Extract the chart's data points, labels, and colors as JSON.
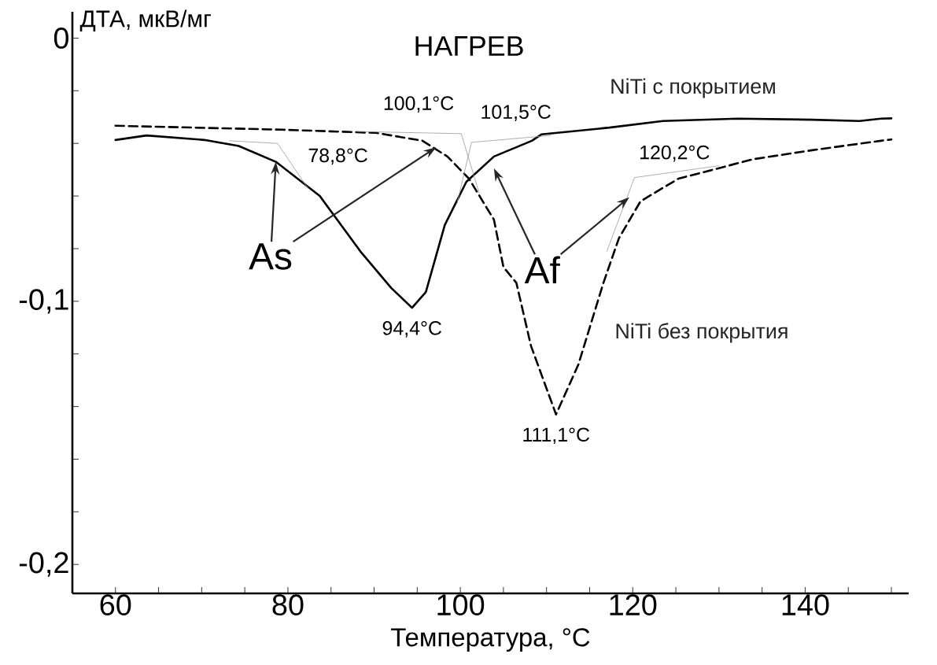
{
  "chart_data": {
    "type": "line",
    "title": "НАГРЕВ",
    "xlabel": "Температура, °C",
    "ylabel": "ДТА, мкВ/мг",
    "xlim": [
      55,
      152
    ],
    "ylim": [
      -0.211,
      0.01
    ],
    "xticks": [
      60,
      {
        "value": 65,
        "label": null
      },
      {
        "value": 70,
        "label": null
      },
      {
        "value": 75,
        "label": null
      },
      80,
      {
        "value": 85,
        "label": null
      },
      {
        "value": 90,
        "label": null
      },
      {
        "value": 95,
        "label": null
      },
      100,
      {
        "value": 105,
        "label": null
      },
      {
        "value": 110,
        "label": null
      },
      {
        "value": 115,
        "label": null
      },
      120,
      {
        "value": 125,
        "label": null
      },
      {
        "value": 130,
        "label": null
      },
      {
        "value": 135,
        "label": null
      },
      140,
      {
        "value": 145,
        "label": null
      },
      {
        "value": 150,
        "label": null
      }
    ],
    "yticks": [
      0,
      {
        "value": -0.02,
        "label": null
      },
      {
        "value": -0.04,
        "label": null
      },
      {
        "value": -0.06,
        "label": null
      },
      {
        "value": -0.08,
        "label": null
      },
      {
        "value": -0.1,
        "label": "-0,1"
      },
      {
        "value": -0.12,
        "label": null
      },
      {
        "value": -0.14,
        "label": null
      },
      {
        "value": -0.16,
        "label": null
      },
      {
        "value": -0.18,
        "label": null
      },
      {
        "value": -0.2,
        "label": "-0,2"
      }
    ],
    "series": [
      {
        "name": "NiTi с покрытием",
        "color": "#000000",
        "line_style": "solid",
        "x": [
          60,
          63.6,
          70.3,
          74.3,
          78.6,
          83.7,
          88.4,
          92.0,
          94.4,
          96.0,
          98.2,
          100.7,
          103.9,
          108.3,
          109.4,
          117.3,
          123.5,
          132.2,
          140.8,
          146.3,
          148.8,
          150
        ],
        "values": [
          -0.0387,
          -0.037,
          -0.0387,
          -0.041,
          -0.047,
          -0.06,
          -0.081,
          -0.095,
          -0.1025,
          -0.0965,
          -0.071,
          -0.0546,
          -0.045,
          -0.039,
          -0.0366,
          -0.034,
          -0.0315,
          -0.0306,
          -0.031,
          -0.0315,
          -0.0306,
          -0.0305
        ]
      },
      {
        "name": "NiTi без покрытия",
        "color": "#000000",
        "line_style": "dashed",
        "x": [
          60,
          79.3,
          90.2,
          95.6,
          98.5,
          101.0,
          103.9,
          105.0,
          106.5,
          108.2,
          111.1,
          113.7,
          116.6,
          118.4,
          120.9,
          125.3,
          134.0,
          140.8,
          148.8,
          150
        ],
        "values": [
          -0.0333,
          -0.0348,
          -0.036,
          -0.039,
          -0.045,
          -0.0534,
          -0.069,
          -0.087,
          -0.093,
          -0.117,
          -0.143,
          -0.124,
          -0.093,
          -0.076,
          -0.062,
          -0.0534,
          -0.046,
          -0.0426,
          -0.039,
          -0.0385
        ]
      },
      {
        "color": "#999999",
        "line_style": "solid",
        "x": [
          73.2,
          78.8,
          82.3
        ],
        "values": [
          -0.039,
          -0.04,
          -0.057
        ]
      },
      {
        "color": "#999999",
        "line_style": "solid",
        "x": [
          88.0,
          100.1,
          102.2
        ],
        "values": [
          -0.0355,
          -0.0363,
          -0.059
        ]
      },
      {
        "color": "#999999",
        "line_style": "solid",
        "x": [
          99.6,
          101.3,
          110.5
        ],
        "values": [
          -0.063,
          -0.0396,
          -0.037
        ]
      },
      {
        "color": "#999999",
        "line_style": "solid",
        "x": [
          117.0,
          120.2,
          130.0
        ],
        "values": [
          -0.081,
          -0.053,
          -0.0485
        ]
      }
    ],
    "annotations": [
      {
        "text": "78,8°C",
        "x": 78.8,
        "y": -0.04
      },
      {
        "text": "100,1°C",
        "x": 100.1,
        "y": -0.0363
      },
      {
        "text": "101,5°C",
        "x": 101.5,
        "y": -0.0396
      },
      {
        "text": "120,2°C",
        "x": 120.2,
        "y": -0.053
      },
      {
        "text": "94,4°C",
        "x": 94.4,
        "y": -0.1025
      },
      {
        "text": "111,1°C",
        "x": 111.1,
        "y": -0.143
      },
      {
        "text": "As",
        "x": 78.6,
        "y": -0.047
      },
      {
        "text": "Af",
        "x": 119.6,
        "y": -0.0605
      }
    ]
  }
}
